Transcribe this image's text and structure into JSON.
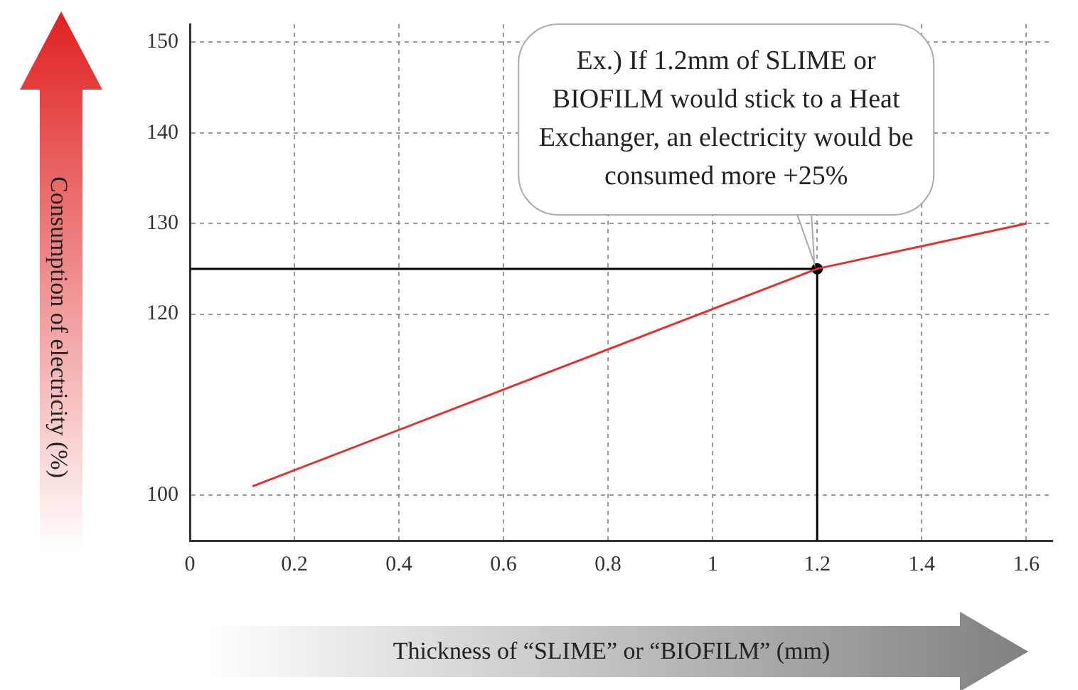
{
  "chart_data": {
    "type": "line",
    "xlabel": "Thickness of “SLIME” or “BIOFILM” (mm)",
    "ylabel": "Consumption of electricity (%)",
    "xlim": [
      0,
      1.65
    ],
    "xticks": [
      0,
      0.2,
      0.4,
      0.6,
      0.8,
      1.0,
      1.2,
      1.4,
      1.6
    ],
    "ylim": [
      95,
      152
    ],
    "yticks": [
      100,
      120,
      130,
      140,
      150
    ],
    "series": [
      {
        "color": "#e03030",
        "x": [
          0.12,
          1.2,
          1.6
        ],
        "values": [
          101,
          125,
          130
        ]
      },
      {
        "color": "#000000",
        "x": [
          0,
          1.2,
          1.2
        ],
        "values": [
          125,
          125,
          95
        ]
      },
      {
        "type": "scatter",
        "color": "#000000",
        "marker": "circle",
        "x": [
          1.2
        ],
        "values": [
          125
        ]
      }
    ],
    "annotations": [
      {
        "text": "Ex.) If 1.2mm of SLIME or BIOFILM would stick to a Heat Exchanger, an electricity would be consumed more +25%",
        "x": 1.2,
        "y": 125
      }
    ],
    "grid": true,
    "legend": false
  }
}
